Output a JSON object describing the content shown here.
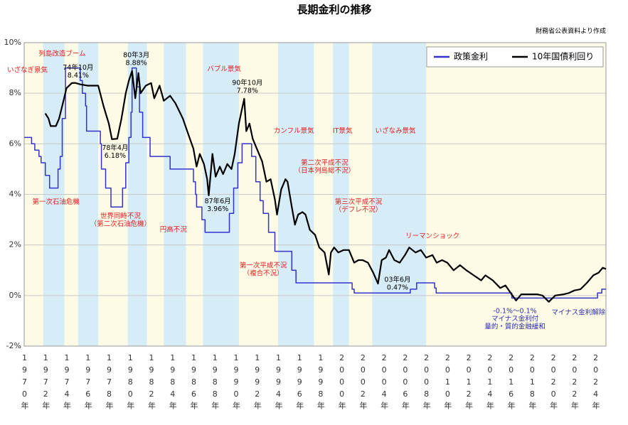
{
  "chart_data": {
    "type": "line",
    "title": "長期金利の推移",
    "source": "財務省公表資料より作成",
    "xlim": [
      1970,
      2025
    ],
    "ylim": [
      -2,
      10
    ],
    "xticks": [
      {
        "value": 1970,
        "label": "1970年"
      },
      {
        "value": 1972,
        "label": "1972年"
      },
      {
        "value": 1974,
        "label": "1974年"
      },
      {
        "value": 1976,
        "label": "1976年"
      },
      {
        "value": 1978,
        "label": "1978年"
      },
      {
        "value": 1980,
        "label": "1980年"
      },
      {
        "value": 1982,
        "label": "1982年"
      },
      {
        "value": 1984,
        "label": "1984年"
      },
      {
        "value": 1986,
        "label": "1986年"
      },
      {
        "value": 1988,
        "label": "1988年"
      },
      {
        "value": 1990,
        "label": "1990年"
      },
      {
        "value": 1992,
        "label": "1992年"
      },
      {
        "value": 1994,
        "label": "1994年"
      },
      {
        "value": 1996,
        "label": "1996年"
      },
      {
        "value": 1998,
        "label": "1998年"
      },
      {
        "value": 2000,
        "label": "2000年"
      },
      {
        "value": 2002,
        "label": "2002年"
      },
      {
        "value": 2004,
        "label": "2004年"
      },
      {
        "value": 2006,
        "label": "2006年"
      },
      {
        "value": 2008,
        "label": "2008年"
      },
      {
        "value": 2010,
        "label": "2010年"
      },
      {
        "value": 2012,
        "label": "2012年"
      },
      {
        "value": 2014,
        "label": "2014年"
      },
      {
        "value": 2016,
        "label": "2016年"
      },
      {
        "value": 2018,
        "label": "2018年"
      },
      {
        "value": 2020,
        "label": "2020年"
      },
      {
        "value": 2022,
        "label": "2022年"
      },
      {
        "value": 2024,
        "label": "2024年"
      }
    ],
    "yticks": [
      {
        "value": -2,
        "label": "-2%"
      },
      {
        "value": 0,
        "label": "0%"
      },
      {
        "value": 2,
        "label": "2%"
      },
      {
        "value": 4,
        "label": "4%"
      },
      {
        "value": 6,
        "label": "6%"
      },
      {
        "value": 8,
        "label": "8%"
      },
      {
        "value": 10,
        "label": "10%"
      }
    ],
    "grid": true,
    "legend": "upper right",
    "background": "#fdfbe6",
    "shading": [
      {
        "x": [
          1971.8,
          1973.8
        ],
        "color": "#d6edf8"
      },
      {
        "x": [
          1975.1,
          1977.0
        ],
        "color": "#d6edf8"
      },
      {
        "x": [
          1979.8,
          1981.6
        ],
        "color": "#d6edf8"
      },
      {
        "x": [
          1983.2,
          1985.3
        ],
        "color": "#d6edf8"
      },
      {
        "x": [
          1986.9,
          1990.3
        ],
        "color": "#d6edf8"
      },
      {
        "x": [
          1994.0,
          1997.4
        ],
        "color": "#d6edf8"
      },
      {
        "x": [
          1999.2,
          2000.7
        ],
        "color": "#d6edf8"
      },
      {
        "x": [
          2002.9,
          2008.0
        ],
        "color": "#d6edf8"
      }
    ],
    "series": [
      {
        "name": "政策金利",
        "color": "#3333cc",
        "x": [
          1970,
          1970.7,
          1970.7,
          1971,
          1971,
          1971.4,
          1971.4,
          1971.6,
          1971.6,
          1972,
          1972,
          1972.4,
          1972.4,
          1973.2,
          1973.2,
          1973.4,
          1973.4,
          1973.6,
          1973.6,
          1973.9,
          1973.9,
          1975.3,
          1975.3,
          1975.5,
          1975.5,
          1975.8,
          1975.8,
          1975.9,
          1975.9,
          1977.2,
          1977.2,
          1977.3,
          1977.3,
          1977.7,
          1977.7,
          1978.2,
          1978.2,
          1979.3,
          1979.3,
          1979.6,
          1979.6,
          1979.9,
          1979.9,
          1980.1,
          1980.1,
          1980.2,
          1980.2,
          1980.6,
          1980.6,
          1980.9,
          1980.9,
          1981.2,
          1981.2,
          1981.9,
          1981.9,
          1983.8,
          1983.8,
          1986,
          1986,
          1986.2,
          1986.2,
          1986.3,
          1986.3,
          1986.8,
          1986.8,
          1987.1,
          1987.1,
          1989.4,
          1989.4,
          1989.8,
          1989.8,
          1990.2,
          1990.2,
          1990.6,
          1990.6,
          1991.5,
          1991.5,
          1991.9,
          1991.9,
          1992.3,
          1992.3,
          1992.6,
          1992.6,
          1993.1,
          1993.1,
          1993.7,
          1993.7,
          1995.3,
          1995.3,
          1995.7,
          1995.7,
          2001,
          2001,
          2001.2,
          2001.2,
          2006.5,
          2006.5,
          2007.1,
          2007.1,
          2008.8,
          2008.8,
          2008.95,
          2008.95,
          2016.1,
          2016.1,
          2024.2,
          2024.2,
          2024.6,
          2024.6,
          2025
        ],
        "values": [
          6.25,
          6.25,
          6,
          6,
          5.75,
          5.75,
          5.5,
          5.5,
          5.25,
          5.25,
          4.75,
          4.75,
          4.25,
          4.25,
          5,
          5,
          5.5,
          5.5,
          7,
          7,
          9,
          9,
          8.5,
          8.5,
          8,
          8,
          7.5,
          7.5,
          6.5,
          6.5,
          6,
          6,
          5,
          5,
          4.25,
          4.25,
          3.5,
          3.5,
          4.25,
          4.25,
          5.25,
          5.25,
          6.25,
          6.25,
          7.25,
          7.25,
          9,
          9,
          8.25,
          8.25,
          7.25,
          7.25,
          6.25,
          6.25,
          5.5,
          5.5,
          5,
          5,
          4.5,
          4.5,
          4,
          4,
          3.5,
          3.5,
          3,
          3,
          2.5,
          2.5,
          3.25,
          3.25,
          4.25,
          4.25,
          5.25,
          5.25,
          6,
          6,
          5.5,
          5.5,
          4.5,
          4.5,
          3.75,
          3.75,
          3.25,
          3.25,
          2.5,
          2.5,
          1.75,
          1.75,
          1,
          1,
          0.5,
          0.5,
          0.25,
          0.25,
          0.1,
          0.1,
          0.25,
          0.25,
          0.5,
          0.5,
          0.3,
          0.3,
          0.1,
          0.1,
          -0.1,
          -0.1,
          0.1,
          0.1,
          0.25,
          0.25
        ]
      },
      {
        "name": "10年国債利回り",
        "color": "#000000",
        "x": [
          1972,
          1972.3,
          1972.5,
          1973,
          1973.3,
          1973.6,
          1974,
          1974.5,
          1974.8,
          1975.3,
          1976,
          1977,
          1977.5,
          1978,
          1978.3,
          1978.8,
          1979.2,
          1979.6,
          1979.9,
          1980.2,
          1980.5,
          1980.8,
          1981,
          1981.5,
          1982,
          1982.3,
          1982.8,
          1983.2,
          1983.8,
          1984.3,
          1985,
          1985.5,
          1986,
          1986.3,
          1986.6,
          1987,
          1987.3,
          1987.45,
          1987.8,
          1988.1,
          1988.5,
          1988.8,
          1989.2,
          1989.6,
          1989.9,
          1990.3,
          1990.6,
          1990.8,
          1991,
          1991.3,
          1991.6,
          1992,
          1992.5,
          1992.9,
          1993.3,
          1993.7,
          1993.9,
          1994.3,
          1994.7,
          1994.9,
          1995.3,
          1995.6,
          1995.9,
          1996.3,
          1996.6,
          1997,
          1997.5,
          1997.9,
          1998.4,
          1998.8,
          1999,
          1999.3,
          1999.7,
          2000.2,
          2000.7,
          2001.2,
          2001.6,
          2002,
          2002.5,
          2003,
          2003.45,
          2003.8,
          2004.2,
          2004.5,
          2005,
          2005.5,
          2006,
          2006.4,
          2007,
          2007.5,
          2008,
          2008.6,
          2009,
          2009.5,
          2010,
          2010.6,
          2011.2,
          2011.8,
          2012.5,
          2013.2,
          2013.6,
          2014.3,
          2015,
          2015.5,
          2016,
          2016.5,
          2017,
          2018.5,
          2019,
          2019.6,
          2020.2,
          2021,
          2021.5,
          2022,
          2022.6,
          2023.2,
          2023.8,
          2024.3,
          2024.7,
          2025
        ],
        "values": [
          7.2,
          7,
          6.7,
          6.7,
          7,
          7.5,
          8.2,
          8.4,
          8.41,
          8.35,
          8.3,
          8.3,
          7.5,
          6.8,
          6.18,
          6.2,
          7,
          8,
          8.5,
          8.88,
          7.8,
          8.8,
          8,
          8.3,
          8.4,
          7.8,
          8.3,
          7.7,
          7.9,
          7.6,
          7,
          6.4,
          5.8,
          5.1,
          5.6,
          5.2,
          4.6,
          3.96,
          5.6,
          4.7,
          5.1,
          4.8,
          5.2,
          5,
          5.6,
          6.8,
          7.4,
          7.78,
          6.5,
          6.8,
          6.2,
          5.8,
          5.3,
          4.5,
          4.6,
          3.8,
          3.2,
          4.2,
          4.6,
          4.5,
          3.5,
          2.8,
          3.2,
          3.3,
          3.2,
          2.6,
          2.4,
          1.9,
          1.7,
          0.83,
          1.7,
          1.9,
          1.7,
          1.8,
          1.8,
          1.3,
          1.4,
          1.4,
          1.3,
          0.9,
          0.47,
          1.4,
          1.5,
          1.8,
          1.4,
          1.3,
          1.6,
          1.9,
          1.7,
          1.8,
          1.5,
          1.6,
          1.3,
          1.4,
          1.3,
          1,
          1.2,
          1,
          0.8,
          0.6,
          0.8,
          0.6,
          0.3,
          0.4,
          0.1,
          -0.2,
          0.05,
          0.05,
          0,
          -0.25,
          0,
          0.05,
          0.1,
          0.2,
          0.25,
          0.5,
          0.8,
          0.9,
          1.1,
          1.05
        ]
      }
    ],
    "annotations": [
      {
        "text": [
          "いざなぎ景気"
        ],
        "x": 1970.3,
        "y": 8.9,
        "color": "#e02020"
      },
      {
        "text": [
          "列島改造ブーム"
        ],
        "x": 1973.6,
        "y": 9.55,
        "color": "#e02020"
      },
      {
        "text": [
          "74年10月",
          "8.41%"
        ],
        "x": 1975.1,
        "y": 9.0,
        "color": "#000000"
      },
      {
        "text": [
          "80年3月",
          "8.88%"
        ],
        "x": 1980.6,
        "y": 9.5,
        "color": "#000000"
      },
      {
        "text": [
          "バブル景気"
        ],
        "x": 1988.9,
        "y": 8.95,
        "color": "#e02020"
      },
      {
        "text": [
          "90年10月",
          "7.78%"
        ],
        "x": 1991.1,
        "y": 8.4,
        "color": "#000000"
      },
      {
        "text": [
          "カンフル景気"
        ],
        "x": 1995.5,
        "y": 6.5,
        "color": "#e02020"
      },
      {
        "text": [
          "IT景気"
        ],
        "x": 2000.1,
        "y": 6.5,
        "color": "#e02020"
      },
      {
        "text": [
          "いざなみ景気"
        ],
        "x": 2005.1,
        "y": 6.5,
        "color": "#e02020"
      },
      {
        "text": [
          "78年4月",
          "6.18%"
        ],
        "x": 1978.6,
        "y": 5.83,
        "color": "#000000"
      },
      {
        "text": [
          "第二次平成不況",
          "（日本列島総不況）"
        ],
        "x": 1998.4,
        "y": 5.24,
        "color": "#e02020"
      },
      {
        "text": [
          "第一次石油危機"
        ],
        "x": 1973.0,
        "y": 3.69,
        "color": "#e02020"
      },
      {
        "text": [
          "87年6月",
          "3.96%"
        ],
        "x": 1988.3,
        "y": 3.72,
        "color": "#000000"
      },
      {
        "text": [
          "第三次平成不況",
          "（デフレ不況）"
        ],
        "x": 2001.6,
        "y": 3.69,
        "color": "#e02020"
      },
      {
        "text": [
          "世界同時不況",
          "（第二次石油危機）"
        ],
        "x": 1979.1,
        "y": 3.13,
        "color": "#e02020"
      },
      {
        "text": [
          "円高不況"
        ],
        "x": 1984.1,
        "y": 2.59,
        "color": "#e02020"
      },
      {
        "text": [
          "リーマンショック"
        ],
        "x": 2008.6,
        "y": 2.34,
        "color": "#e02020"
      },
      {
        "text": [
          "第一次平成不況",
          "（複合不況）"
        ],
        "x": 1992.6,
        "y": 1.18,
        "color": "#e02020"
      },
      {
        "text": [
          "03年6月",
          "0.47%"
        ],
        "x": 2005.3,
        "y": 0.62,
        "color": "#000000"
      },
      {
        "text": [
          "-0.1%～0.1%",
          "マイナス金利付",
          "量的・質的金融緩和"
        ],
        "x": 2016.4,
        "y": -0.62,
        "color": "#2a2ab0"
      },
      {
        "text": [
          "マイナス金利解除"
        ],
        "x": 2022.4,
        "y": -0.68,
        "color": "#2a2ab0"
      }
    ]
  }
}
